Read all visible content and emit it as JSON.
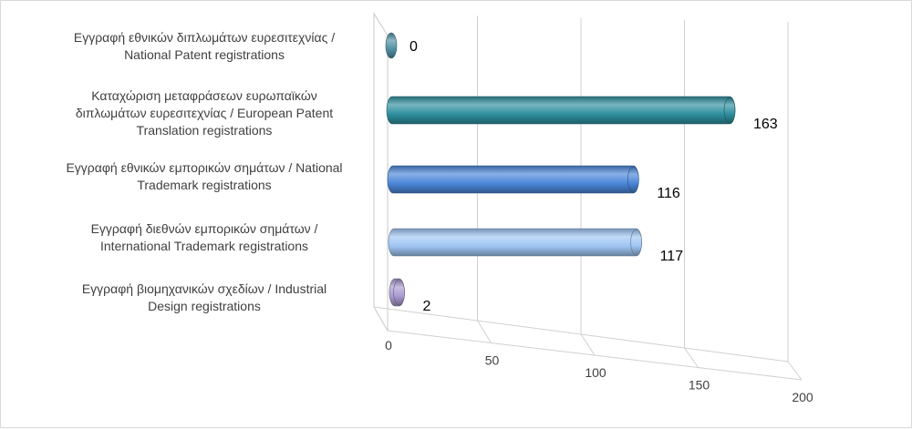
{
  "chart_data": {
    "type": "bar",
    "orientation": "horizontal",
    "style": "3d-cylinder",
    "title": "",
    "xlabel": "",
    "ylabel": "",
    "xlim": [
      0,
      200
    ],
    "x_ticks": [
      "0",
      "50",
      "100",
      "150",
      "200"
    ],
    "grid": true,
    "legend": "none",
    "categories": [
      "Εγγραφή  εθνικών διπλωμάτων ευρεσιτεχνίας /\nNational Patent registrations",
      "Καταχώριση μεταφράσεων ευρωπαϊκών\nδιπλωμάτων ευρεσιτεχνίας / European Patent\nTranslation registrations",
      "Εγγραφή  εθνικών εμπορικών σημάτων / National\nTrademark registrations",
      "Εγγραφή  διεθνών εμπορικών σημάτων /\nInternational Trademark registrations",
      "Εγγραφή  βιομηχανικών σχεδίων / Industrial\nDesign registrations"
    ],
    "values": [
      0,
      163,
      116,
      117,
      2
    ],
    "data_labels": [
      "0",
      "163",
      "116",
      "117",
      "2"
    ],
    "colors": [
      "#4e8fa3",
      "#2e8f9e",
      "#4a86d8",
      "#9ec4f2",
      "#a99bd0"
    ]
  }
}
